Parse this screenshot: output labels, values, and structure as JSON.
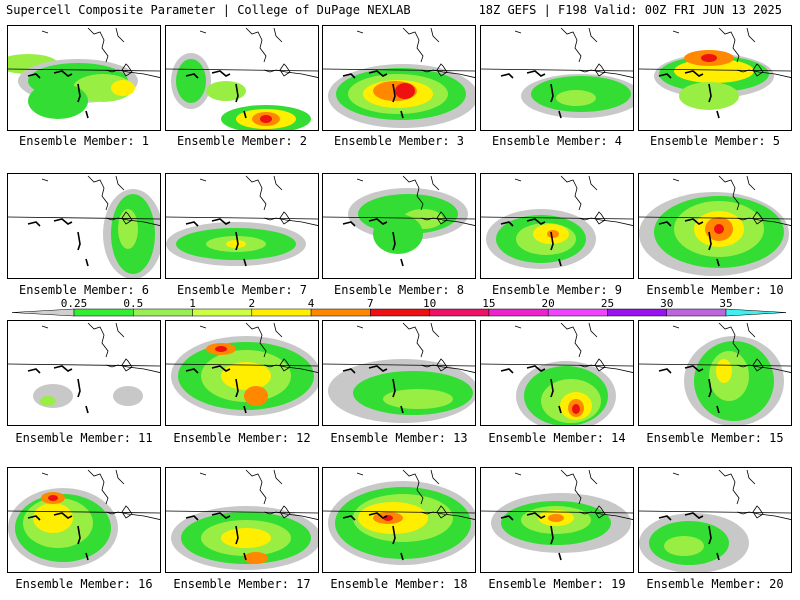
{
  "header": {
    "left_title": "Supercell Composite Parameter | College of DuPage NEXLAB",
    "right_title": "18Z GEFS | F198 Valid: 00Z FRI JUN 13 2025"
  },
  "legend": {
    "ticks": [
      "0.25",
      "0.5",
      "1",
      "2",
      "4",
      "7",
      "10",
      "15",
      "20",
      "25",
      "30",
      "35"
    ],
    "colors": [
      "#d0d0d0",
      "#33ee33",
      "#99ee55",
      "#ccff44",
      "#ffee00",
      "#ff8800",
      "#ee1111",
      "#ee1166",
      "#ee22cc",
      "#ee44ff",
      "#9911ee",
      "#bb66dd",
      "#44eeee"
    ]
  },
  "colors": {
    "gray": "#c8c8c8",
    "green": "#33dd33",
    "lightgreen": "#99ee44",
    "yellow": "#ffee00",
    "orange": "#ff8800",
    "red": "#ee1111"
  },
  "panels": [
    {
      "label": "Ensemble Member: 1"
    },
    {
      "label": "Ensemble Member: 2"
    },
    {
      "label": "Ensemble Member: 3"
    },
    {
      "label": "Ensemble Member: 4"
    },
    {
      "label": "Ensemble Member: 5"
    },
    {
      "label": "Ensemble Member: 6"
    },
    {
      "label": "Ensemble Member: 7"
    },
    {
      "label": "Ensemble Member: 8"
    },
    {
      "label": "Ensemble Member: 9"
    },
    {
      "label": "Ensemble Member: 10"
    },
    {
      "label": "Ensemble Member: 11"
    },
    {
      "label": "Ensemble Member: 12"
    },
    {
      "label": "Ensemble Member: 13"
    },
    {
      "label": "Ensemble Member: 14"
    },
    {
      "label": "Ensemble Member: 15"
    },
    {
      "label": "Ensemble Member: 16"
    },
    {
      "label": "Ensemble Member: 17"
    },
    {
      "label": "Ensemble Member: 18"
    },
    {
      "label": "Ensemble Member: 19"
    },
    {
      "label": "Ensemble Member: 20"
    }
  ]
}
